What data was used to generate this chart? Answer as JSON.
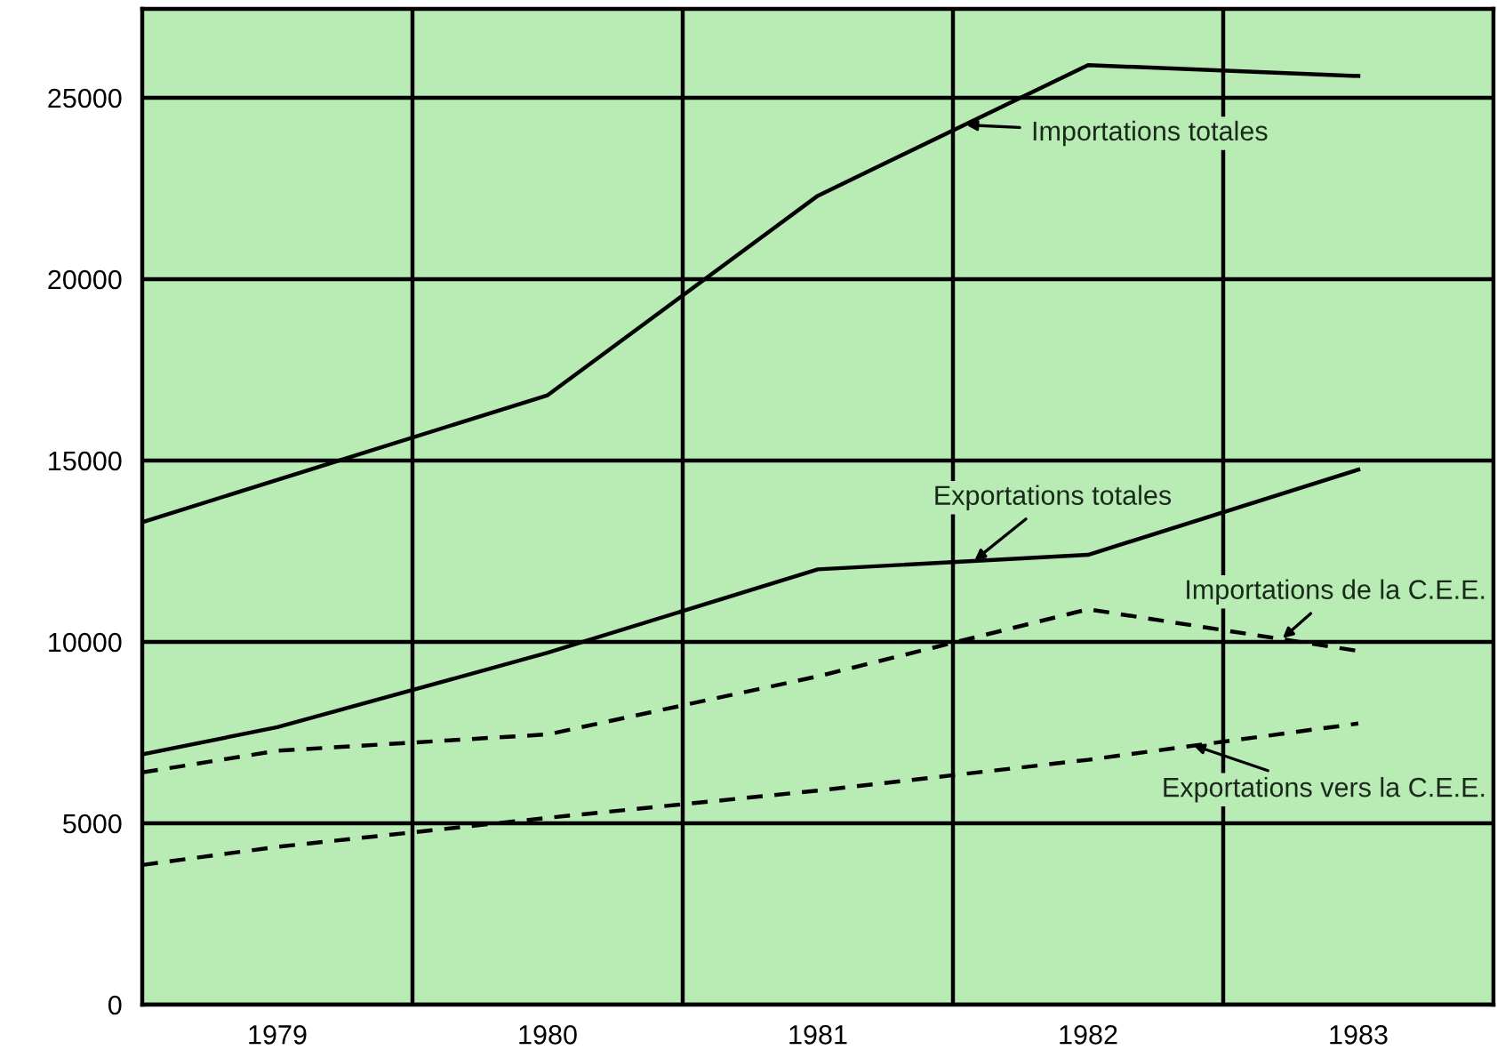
{
  "chart_data": {
    "type": "line",
    "xlim": [
      1978.5,
      1983.5
    ],
    "xticks": [
      1979,
      1980,
      1981,
      1982,
      1983
    ],
    "ylim": [
      0,
      27450
    ],
    "yticks": [
      0,
      5000,
      10000,
      15000,
      20000,
      25000
    ],
    "grid": "y",
    "marker": "none",
    "legend": false,
    "ref_lines": [
      {
        "axis": "x",
        "value": 1979.5,
        "color": "#000000",
        "line_style": "solid"
      },
      {
        "axis": "x",
        "value": 1980.5,
        "color": "#000000",
        "line_style": "solid"
      },
      {
        "axis": "x",
        "value": 1981.5,
        "color": "#000000",
        "line_style": "solid"
      },
      {
        "axis": "x",
        "value": 1982.5,
        "color": "#000000",
        "line_style": "solid"
      }
    ],
    "series": [
      {
        "x": [
          1978.5,
          1980,
          1981,
          1982,
          1983
        ],
        "values": [
          13300,
          16800,
          22300,
          25900,
          25600
        ],
        "color": "#000000",
        "line_style": "solid"
      },
      {
        "x": [
          1978.5,
          1979,
          1980,
          1981,
          1982,
          1983
        ],
        "values": [
          6900,
          7650,
          9700,
          12000,
          12400,
          14750
        ],
        "color": "#000000",
        "line_style": "solid"
      },
      {
        "x": [
          1978.5,
          1979,
          1980,
          1981,
          1982,
          1983
        ],
        "values": [
          6400,
          7000,
          7450,
          9050,
          10900,
          9750
        ],
        "color": "#000000",
        "line_style": "dashed"
      },
      {
        "x": [
          1978.5,
          1979,
          1980,
          1981,
          1982,
          1983
        ],
        "values": [
          3850,
          4350,
          5150,
          5900,
          6750,
          7750
        ],
        "color": "#000000",
        "line_style": "dashed"
      }
    ],
    "annotations": [
      {
        "text": "Importations totales",
        "x": 1981.55,
        "y": 24250
      },
      {
        "text": "Exportations totales",
        "x": 1981.58,
        "y": 12250
      },
      {
        "text": "Importations de la C.E.E.",
        "x": 1982.72,
        "y": 10100
      },
      {
        "text": "Exportations vers la C.E.E.",
        "x": 1982.39,
        "y": 7150
      }
    ]
  }
}
